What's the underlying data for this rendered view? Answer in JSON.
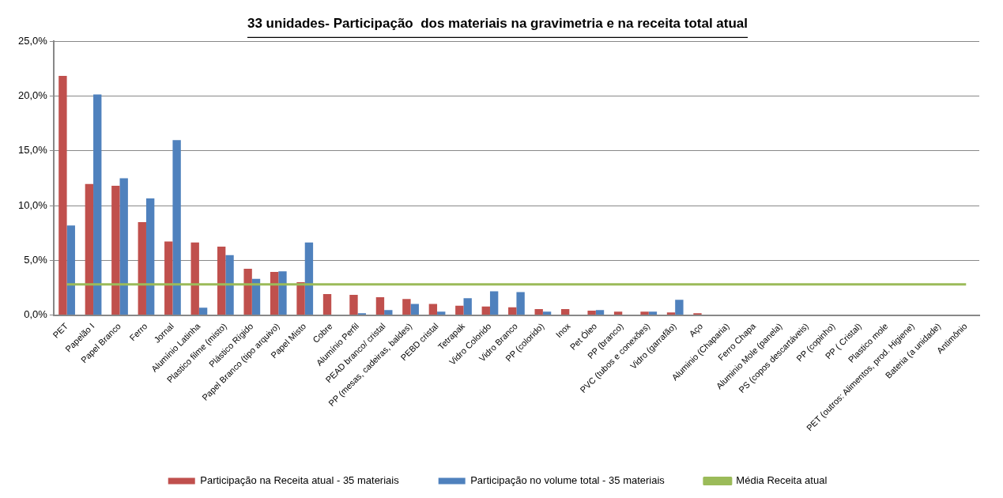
{
  "chart_data": {
    "type": "bar",
    "title": "33 unidades- Participação  dos materiais na gravimetria e na receita total atual",
    "categories": [
      "PET",
      "Papelão I",
      "Papel Branco",
      "Ferro",
      "Jornal",
      "Alumínio Latinha",
      "Plastico filme (misto)",
      "Plástico Rígido",
      "Papel Branco (tipo arquivo)",
      "Papel Misto",
      "Cobre",
      "Alumínio Perfil",
      "PEAD branco/ cristal",
      "PP (mesas, cadeiras, baldes)",
      "PEBD cristal",
      "Tetrapak",
      "Vidro Colorido",
      "Vidro Branco",
      "PP (colorido)",
      "Inox",
      "Pet Óleo",
      "PP (branco)",
      "PVC (tubos e conexões)",
      "Vidro (garrafão)",
      "Aço",
      "Aluminio (Chaparia)",
      "Ferro Chapa",
      "Aluminio Mole (panela)",
      "PS (copos descartáveis)",
      "PP (copinho)",
      "PP ( Cristal)",
      "Plastico mole",
      "PET (outros: Alimentos, prod. Higiene)",
      "Bateria (a unidade)",
      "Antimônio"
    ],
    "series": [
      {
        "name": "Participação na Receita atual - 35 materiais",
        "color": "#c0504d",
        "values": [
          21.85,
          11.97,
          11.81,
          8.48,
          6.71,
          6.62,
          6.25,
          4.23,
          3.93,
          2.99,
          1.91,
          1.85,
          1.63,
          1.47,
          1.01,
          0.85,
          0.78,
          0.71,
          0.55,
          0.55,
          0.39,
          0.3,
          0.3,
          0.23,
          0.16,
          0,
          0,
          0,
          0,
          0,
          0,
          0,
          0,
          0,
          0
        ]
      },
      {
        "name": "Participação no volume total - 35 materiais",
        "color": "#4f81bd",
        "values": [
          8.18,
          20.15,
          12.5,
          10.66,
          15.99,
          0.67,
          5.47,
          3.31,
          4.0,
          6.62,
          0,
          0.16,
          0.46,
          1.01,
          0.3,
          1.54,
          2.16,
          2.09,
          0.3,
          0,
          0.46,
          0,
          0.3,
          1.4,
          0,
          0,
          0,
          0,
          0,
          0,
          0,
          0,
          0,
          0,
          0
        ]
      },
      {
        "name": "Média Receita atual",
        "type": "line",
        "color": "#9bbb59",
        "values": [
          2.8,
          2.8,
          2.8,
          2.8,
          2.8,
          2.8,
          2.8,
          2.8,
          2.8,
          2.8,
          2.8,
          2.8,
          2.8,
          2.8,
          2.8,
          2.8,
          2.8,
          2.8,
          2.8,
          2.8,
          2.8,
          2.8,
          2.8,
          2.8,
          2.8,
          2.8,
          2.8,
          2.8,
          2.8,
          2.8,
          2.8,
          2.8,
          2.8,
          2.8,
          2.8
        ]
      }
    ],
    "ylim": [
      0,
      25
    ],
    "yticks": [
      {
        "value": 0,
        "label": "0,0%"
      },
      {
        "value": 5,
        "label": "5,0%"
      },
      {
        "value": 10,
        "label": "10,0%"
      },
      {
        "value": 15,
        "label": "15,0%"
      },
      {
        "value": 20,
        "label": "20,0%"
      },
      {
        "value": 25,
        "label": "25,0%"
      }
    ],
    "grid": "y",
    "legend": "bottom",
    "marker": "none",
    "line_style": "solid"
  }
}
